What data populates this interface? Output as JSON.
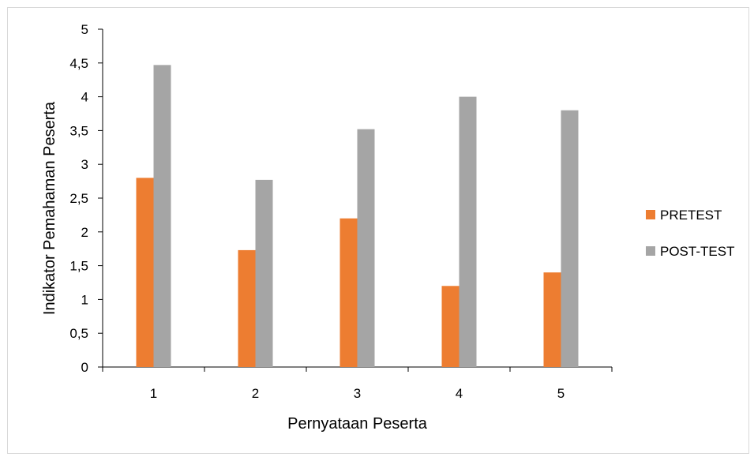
{
  "chart_data": {
    "type": "bar",
    "categories": [
      "1",
      "2",
      "3",
      "4",
      "5"
    ],
    "series": [
      {
        "name": "PRETEST",
        "values": [
          2.8,
          1.73,
          2.2,
          1.2,
          1.4
        ],
        "color": "#ed7d31"
      },
      {
        "name": "POST-TEST",
        "values": [
          4.47,
          2.77,
          3.52,
          4.0,
          3.8
        ],
        "color": "#a5a5a5"
      }
    ],
    "xlabel": "Pernyataan Peserta",
    "ylabel": "Indikator Pemahaman Peserta",
    "ylim": [
      0,
      5
    ],
    "yticks": [
      "0",
      "0,5",
      "1",
      "1,5",
      "2",
      "2,5",
      "3",
      "3,5",
      "4",
      "4,5",
      "5"
    ],
    "grid": false,
    "legend": "right"
  }
}
